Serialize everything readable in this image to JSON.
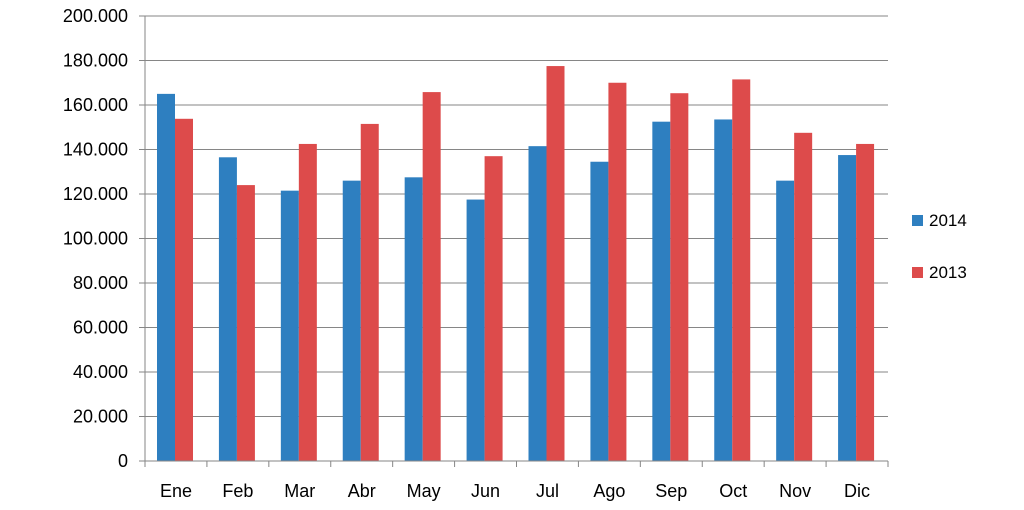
{
  "chart_data": {
    "type": "bar",
    "title": "",
    "xlabel": "",
    "ylabel": "",
    "categories": [
      "Ene",
      "Feb",
      "Mar",
      "Abr",
      "May",
      "Jun",
      "Jul",
      "Ago",
      "Sep",
      "Oct",
      "Nov",
      "Dic"
    ],
    "series": [
      {
        "name": "2014",
        "color": "#2e7fc0",
        "values": [
          165000,
          136500,
          121500,
          126000,
          127500,
          117500,
          141500,
          134500,
          152500,
          153500,
          126000,
          137500
        ]
      },
      {
        "name": "2013",
        "color": "#dd4b4b",
        "values": [
          153800,
          124000,
          142500,
          151500,
          165800,
          137000,
          177500,
          170000,
          165300,
          171500,
          147500,
          142500
        ]
      }
    ],
    "ylim": [
      0,
      200000
    ],
    "yticks": [
      0,
      20000,
      40000,
      60000,
      80000,
      100000,
      120000,
      140000,
      160000,
      180000,
      200000
    ],
    "ytick_labels": [
      "0",
      "20.000",
      "40.000",
      "60.000",
      "80.000",
      "100.000",
      "120.000",
      "140.000",
      "160.000",
      "180.000",
      "200.000"
    ],
    "grid": true,
    "legend_position": "right"
  }
}
